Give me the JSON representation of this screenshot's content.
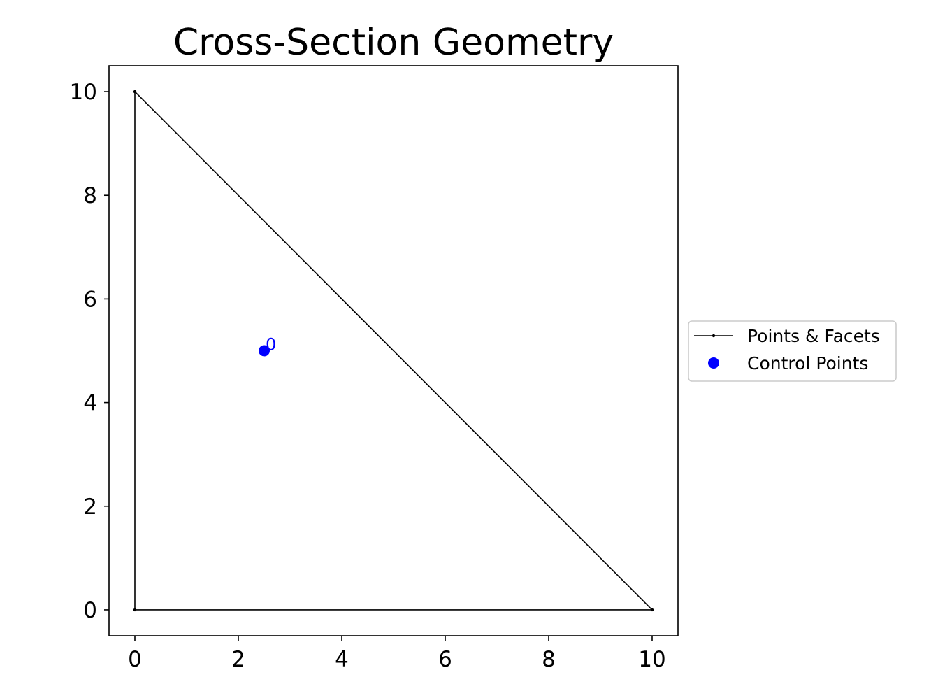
{
  "chart_data": {
    "type": "scatter",
    "title": "Cross-Section Geometry",
    "xlabel": "",
    "ylabel": "",
    "xlim": [
      -0.5,
      10.5
    ],
    "ylim": [
      -0.5,
      10.5
    ],
    "x_ticks": [
      0,
      2,
      4,
      6,
      8,
      10
    ],
    "y_ticks": [
      0,
      2,
      4,
      6,
      8,
      10
    ],
    "x_tick_labels": [
      "0",
      "2",
      "4",
      "6",
      "8",
      "10"
    ],
    "y_tick_labels": [
      "0",
      "2",
      "4",
      "6",
      "8",
      "10"
    ],
    "grid": false,
    "legend_position": "center-right-outside",
    "series": [
      {
        "name": "Points & Facets",
        "kind": "polygon",
        "color": "#000000",
        "points": [
          [
            0,
            0
          ],
          [
            10,
            0
          ],
          [
            0,
            10
          ]
        ],
        "facets": [
          [
            0,
            1
          ],
          [
            1,
            2
          ],
          [
            2,
            0
          ]
        ]
      },
      {
        "name": "Control Points",
        "kind": "scatter",
        "color": "#0000ff",
        "points": [
          [
            2.5,
            5
          ]
        ],
        "labels": [
          "0"
        ]
      }
    ]
  }
}
